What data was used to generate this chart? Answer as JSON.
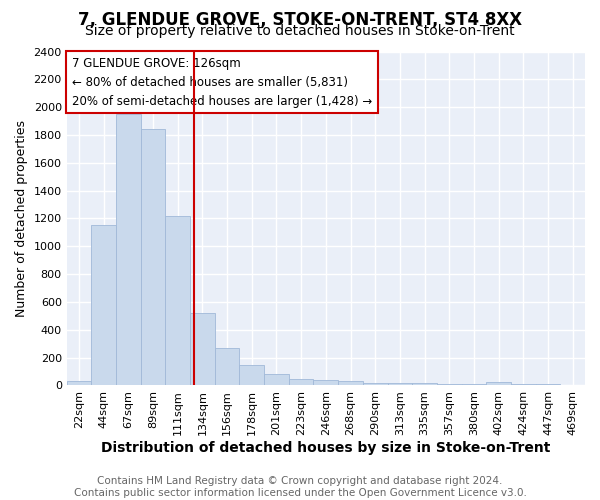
{
  "title": "7, GLENDUE GROVE, STOKE-ON-TRENT, ST4 8XX",
  "subtitle": "Size of property relative to detached houses in Stoke-on-Trent",
  "xlabel": "Distribution of detached houses by size in Stoke-on-Trent",
  "ylabel": "Number of detached properties",
  "footer_line1": "Contains HM Land Registry data © Crown copyright and database right 2024.",
  "footer_line2": "Contains public sector information licensed under the Open Government Licence v3.0.",
  "categories": [
    "22sqm",
    "44sqm",
    "67sqm",
    "89sqm",
    "111sqm",
    "134sqm",
    "156sqm",
    "178sqm",
    "201sqm",
    "223sqm",
    "246sqm",
    "268sqm",
    "290sqm",
    "313sqm",
    "335sqm",
    "357sqm",
    "380sqm",
    "402sqm",
    "424sqm",
    "447sqm",
    "469sqm"
  ],
  "values": [
    30,
    1150,
    1950,
    1840,
    1220,
    520,
    270,
    150,
    85,
    45,
    40,
    35,
    20,
    20,
    15,
    10,
    10,
    25,
    10,
    10,
    5
  ],
  "bar_color": "#c9d9ec",
  "bar_edge_color": "#a0b8d8",
  "background_color": "#eaeff8",
  "grid_color": "#ffffff",
  "annotation_line1": "7 GLENDUE GROVE: 126sqm",
  "annotation_line2": "← 80% of detached houses are smaller (5,831)",
  "annotation_line3": "20% of semi-detached houses are larger (1,428) →",
  "annotation_box_color": "#ffffff",
  "annotation_box_edge_color": "#cc0000",
  "ylim": [
    0,
    2400
  ],
  "yticks": [
    0,
    200,
    400,
    600,
    800,
    1000,
    1200,
    1400,
    1600,
    1800,
    2000,
    2200,
    2400
  ],
  "title_fontsize": 12,
  "subtitle_fontsize": 10,
  "xlabel_fontsize": 10,
  "ylabel_fontsize": 9,
  "tick_fontsize": 8,
  "annotation_fontsize": 8.5,
  "footer_fontsize": 7.5
}
